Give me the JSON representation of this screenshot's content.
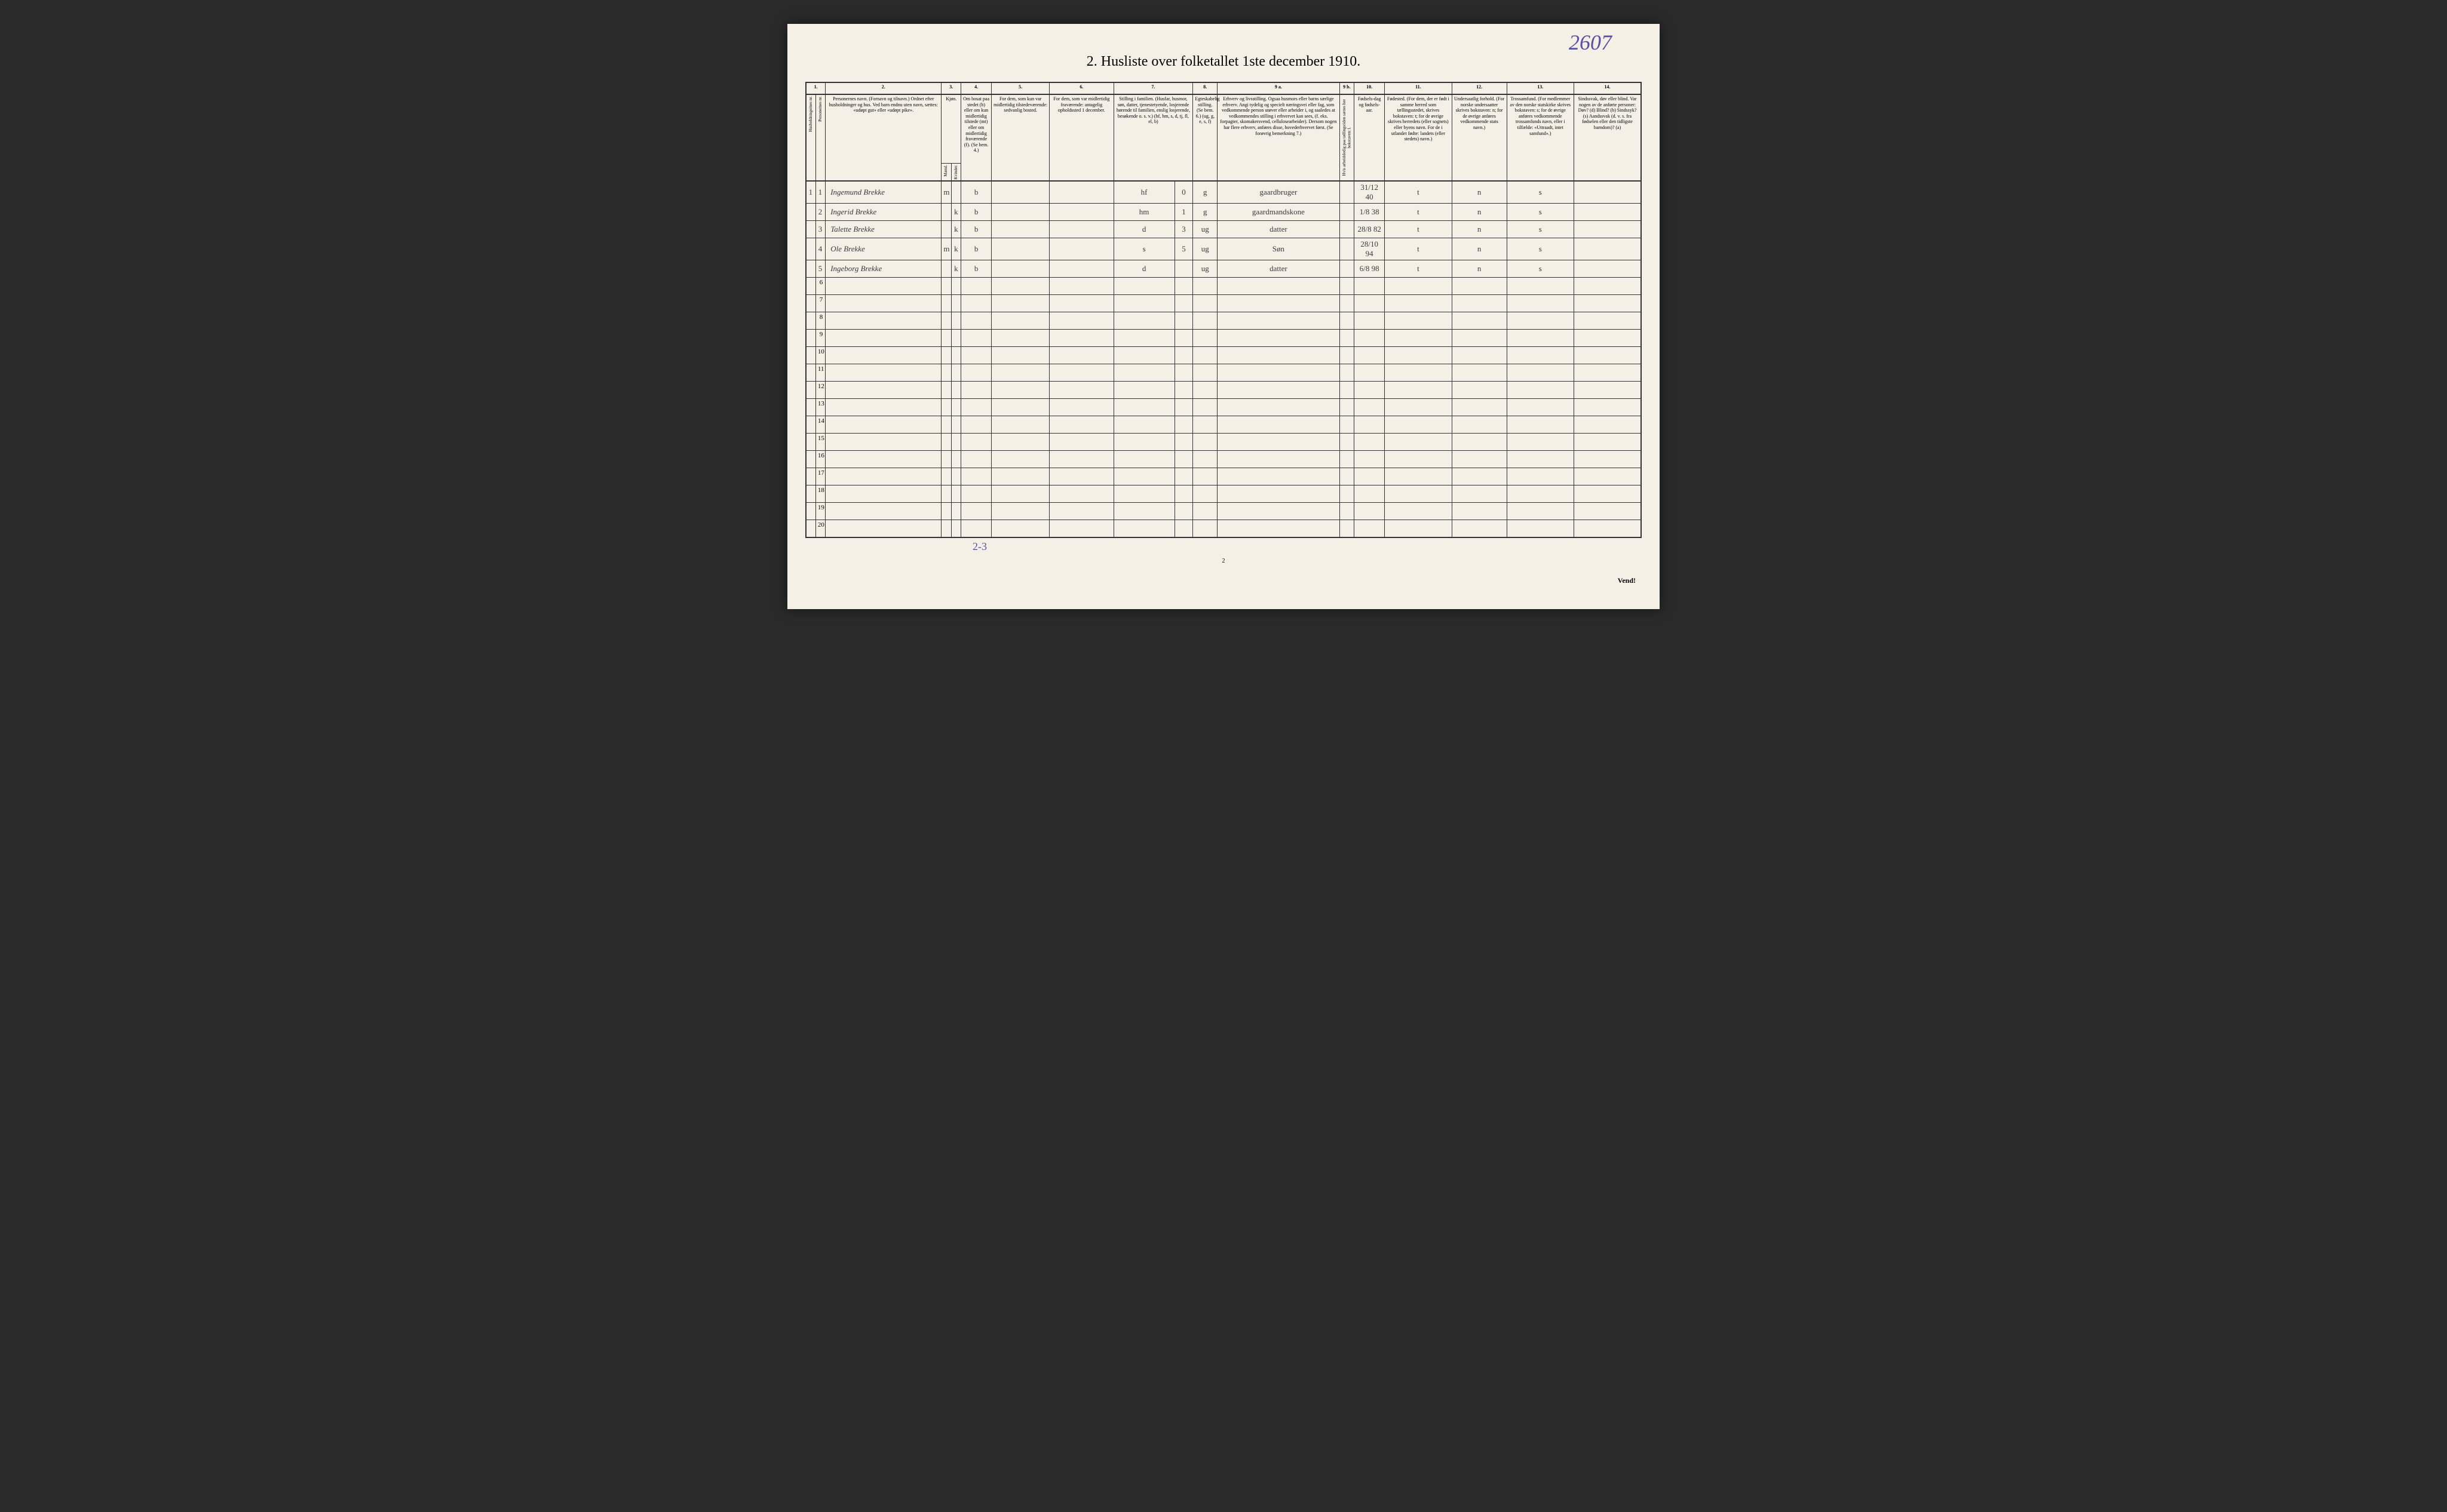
{
  "handwritten_corner": "2607",
  "title": "2.  Husliste over folketallet 1ste december 1910.",
  "bottom_note": "2-3",
  "footer_page": "2",
  "vend": "Vend!",
  "columns": {
    "c1": "1.",
    "c2": "2.",
    "c3": "3.",
    "c4": "4.",
    "c5": "5.",
    "c6": "6.",
    "c7": "7.",
    "c8": "8.",
    "c9a": "9 a.",
    "c9b": "9 b.",
    "c10": "10.",
    "c11": "11.",
    "c12": "12.",
    "c13": "13.",
    "c14": "14."
  },
  "headers": {
    "h1a": "Husholdningernes nr.",
    "h1b": "Personernes nr.",
    "h2": "Personernes navn.\n(Fornavn og tilnavn.)\nOrdnet efter husholdninger og hus.\nVed barn endnu uten navn, sættes: «udøpt gut» eller «udøpt pike».",
    "h3": "Kjøn.",
    "h3a": "Mænd.",
    "h3b": "Kvinder.",
    "h4": "Om bosat paa stedet (b) eller om kun midlertidig tilstede (mt) eller om midlertidig fraværende (f).\n(Se bem. 4.)",
    "h5": "For dem, som kun var midlertidig tilstedeværende:\nsedvanlig bosted.",
    "h6": "For dem, som var midlertidig fraværende:\nantagelig opholdssted 1 december.",
    "h7": "Stilling i familien.\n(Husfar, husmor, søn, datter, tjenestetyende, losjerende hørende til familien, enslig losjerende, besøkende o. s. v.)\n(hf, hm, s, d, tj, fl, el, b)",
    "h8": "Egteskabelig stilling.\n(Se bem. 6.)\n(ug, g, e, s, f)",
    "h9a": "Erhverv og livsstilling.\nOgsaa husmors eller barns særlige erhverv.\nAngi tydelig og specielt næringsvei eller fag, som vedkommende person utøver eller arbeider i, og saaledes at vedkommendes stilling i erhvervet kan sees, (f. eks. forpagter, skomakersvend, cellulosearbeider). Dersom nogen har flere erhverv, anføres disse, hovederhvervet først.\n(Se forøvrig bemerkning 7.)",
    "h9b": "Hvis arbeidsledig paa tællingstiden sættes her bokstaven: l.",
    "h10": "Fødsels-dag og fødsels-aar.",
    "h11": "Fødested.\n(For dem, der er født i samme herred som tællingsstedet, skrives bokstaven: t; for de øvrige skrives herredets (eller sognets) eller byens navn.\nFor de i utlandet fødte: landets (eller stedets) navn.)",
    "h12": "Undersaatlig forhold.\n(For norske undersaatter skrives bokstaven: n; for de øvrige anføres vedkommende stats navn.)",
    "h13": "Trossamfund.\n(For medlemmer av den norske statskirke skrives bokstaven: s; for de øvrige anføres vedkommende trossamfunds navn, eller i tilfælde: «Uttraadt, intet samfund».)",
    "h14": "Sindssvak, døv eller blind.\nVar nogen av de anførte personer:\nDøv? (d)\nBlind? (b)\nSindssyk? (s)\nAandssvak (d. v. s. fra fødselen eller den tidligste barndom)? (a)"
  },
  "rows": [
    {
      "hnr": "1",
      "pnr": "1",
      "name": "Ingemund Brekke",
      "m": "m",
      "k": "",
      "status": "b",
      "col5": "",
      "col6": "",
      "famstill": "hf",
      "famnum": "0",
      "egte": "g",
      "erhverv": "gaardbruger",
      "c9b": "",
      "fdato": "31/12 40",
      "fsted": "t",
      "under": "n",
      "tro": "s",
      "c14": ""
    },
    {
      "hnr": "",
      "pnr": "2",
      "name": "Ingerid Brekke",
      "m": "",
      "k": "k",
      "status": "b",
      "col5": "",
      "col6": "",
      "famstill": "hm",
      "famnum": "1",
      "egte": "g",
      "erhverv": "gaardmandskone",
      "c9b": "",
      "fdato": "1/8 38",
      "fsted": "t",
      "under": "n",
      "tro": "s",
      "c14": ""
    },
    {
      "hnr": "",
      "pnr": "3",
      "name": "Talette Brekke",
      "m": "",
      "k": "k",
      "status": "b",
      "col5": "",
      "col6": "",
      "famstill": "d",
      "famnum": "3",
      "egte": "ug",
      "erhverv": "datter",
      "c9b": "",
      "fdato": "28/8 82",
      "fsted": "t",
      "under": "n",
      "tro": "s",
      "c14": ""
    },
    {
      "hnr": "",
      "pnr": "4",
      "name": "Ole Brekke",
      "m": "m",
      "k": "k",
      "status": "b",
      "col5": "",
      "col6": "",
      "famstill": "s",
      "famnum": "5",
      "egte": "ug",
      "erhverv": "Søn",
      "c9b": "",
      "fdato": "28/10 94",
      "fsted": "t",
      "under": "n",
      "tro": "s",
      "c14": ""
    },
    {
      "hnr": "",
      "pnr": "5",
      "name": "Ingeborg Brekke",
      "m": "",
      "k": "k",
      "status": "b",
      "col5": "",
      "col6": "",
      "famstill": "d",
      "famnum": "",
      "egte": "ug",
      "erhverv": "datter",
      "c9b": "",
      "fdato": "6/8 98",
      "fsted": "t",
      "under": "n",
      "tro": "s",
      "c14": ""
    }
  ],
  "empty_rows": [
    6,
    7,
    8,
    9,
    10,
    11,
    12,
    13,
    14,
    15,
    16,
    17,
    18,
    19,
    20
  ],
  "colwidths": {
    "c1a": 16,
    "c1b": 16,
    "c2": 190,
    "c3a": 16,
    "c3b": 16,
    "c4": 50,
    "c5": 95,
    "c6": 105,
    "c7a": 100,
    "c7b": 30,
    "c8": 40,
    "c9a": 200,
    "c9b": 24,
    "c10": 50,
    "c11": 110,
    "c12": 90,
    "c13": 110,
    "c14": 110
  }
}
